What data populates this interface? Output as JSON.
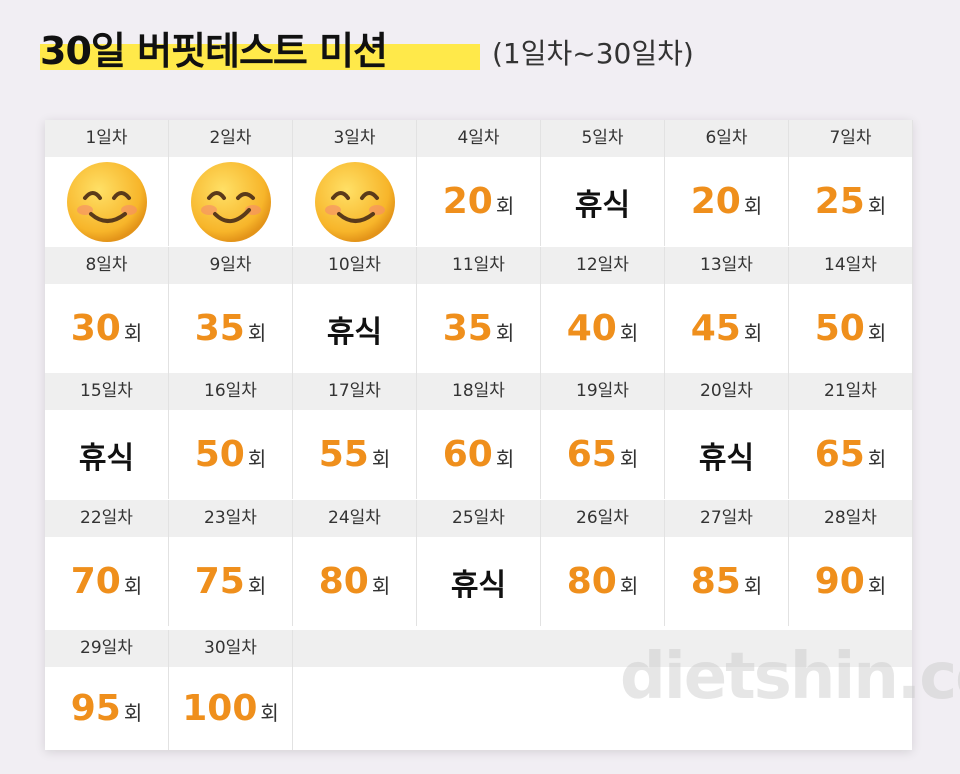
{
  "header": {
    "title": "30일 버핏테스트 미션",
    "subtitle": "(1일차~30일차)"
  },
  "cells": [
    {
      "day": "1일차"
    },
    {
      "day": "2일차"
    },
    {
      "day": "3일차"
    },
    {
      "day": "4일차",
      "count": 20,
      "unit": "회"
    },
    {
      "day": "5일차",
      "rest": "휴식"
    },
    {
      "day": "6일차",
      "count": 20,
      "unit": "회"
    },
    {
      "day": "7일차",
      "count": 25,
      "unit": "회"
    },
    {
      "day": "8일차",
      "count": 30,
      "unit": "회"
    },
    {
      "day": "9일차",
      "count": 35,
      "unit": "회"
    },
    {
      "day": "10일차",
      "rest": "휴식"
    },
    {
      "day": "11일차",
      "count": 35,
      "unit": "회"
    },
    {
      "day": "12일차",
      "count": 40,
      "unit": "회"
    },
    {
      "day": "13일차",
      "count": 45,
      "unit": "회"
    },
    {
      "day": "14일차",
      "count": 50,
      "unit": "회"
    },
    {
      "day": "15일차",
      "rest": "휴식"
    },
    {
      "day": "16일차",
      "count": 50,
      "unit": "회"
    },
    {
      "day": "17일차",
      "count": 55,
      "unit": "회"
    },
    {
      "day": "18일차",
      "count": 60,
      "unit": "회"
    },
    {
      "day": "19일차",
      "count": 65,
      "unit": "회"
    },
    {
      "day": "20일차",
      "rest": "휴식"
    },
    {
      "day": "21일차",
      "count": 65,
      "unit": "회"
    },
    {
      "day": "22일차",
      "count": 70,
      "unit": "회"
    },
    {
      "day": "23일차",
      "count": 75,
      "unit": "회"
    },
    {
      "day": "24일차",
      "count": 80,
      "unit": "회"
    },
    {
      "day": "25일차",
      "rest": "휴식"
    },
    {
      "day": "26일차",
      "count": 80,
      "unit": "회"
    },
    {
      "day": "27일차",
      "count": 85,
      "unit": "회"
    },
    {
      "day": "28일차",
      "count": 90,
      "unit": "회"
    },
    {
      "day": "29일차",
      "count": 95,
      "unit": "회"
    },
    {
      "day": "30일차",
      "count": 100,
      "unit": "회"
    }
  ],
  "watermark": "dietshin.com"
}
